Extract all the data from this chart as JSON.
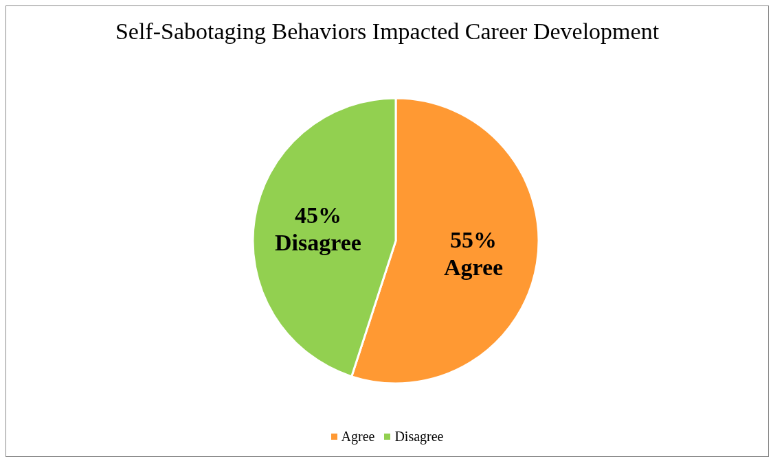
{
  "chart_data": {
    "type": "pie",
    "title": "Self-Sabotaging Behaviors Impacted Career Development",
    "categories": [
      "Agree",
      "Disagree"
    ],
    "values": [
      55,
      45
    ],
    "colors": [
      "#ff9933",
      "#92d050"
    ],
    "value_labels": [
      "55%",
      "45%"
    ],
    "legend": "bottom"
  }
}
